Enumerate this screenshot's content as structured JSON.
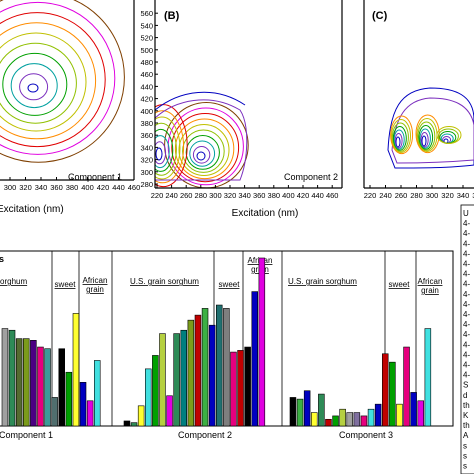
{
  "chart_data": [
    {
      "type": "contour",
      "panel": "(A)",
      "component_label": "Component 1",
      "xlabel": "Excitation (nm)",
      "ylabel": "",
      "x_ticks_visible": [
        "300",
        "320",
        "340",
        "360",
        "380",
        "400",
        "420",
        "440",
        "460"
      ],
      "y_ticks_visible": [],
      "xlim": [
        278,
        466
      ],
      "ylim": [
        270,
        570
      ],
      "peak": {
        "x": 336,
        "y": 432
      }
    },
    {
      "type": "contour",
      "panel": "(B)",
      "component_label": "Component 2",
      "xlabel": "Excitation (nm)",
      "ylabel": "",
      "x_ticks": [
        "220",
        "240",
        "260",
        "280",
        "300",
        "320",
        "340",
        "360",
        "380",
        "400",
        "420",
        "440",
        "460"
      ],
      "y_ticks": [
        "280",
        "300",
        "320",
        "340",
        "360",
        "380",
        "400",
        "420",
        "440",
        "460",
        "480",
        "500",
        "520",
        "540",
        "560"
      ],
      "xlim": [
        220,
        460
      ],
      "ylim": [
        280,
        560
      ],
      "peaks": [
        {
          "x": 282,
          "y": 330
        },
        {
          "x": 225,
          "y": 335
        }
      ]
    },
    {
      "type": "contour",
      "panel": "(C)",
      "component_label": "",
      "xlabel": "",
      "ylabel": "",
      "x_ticks": [
        "220",
        "240",
        "260",
        "280",
        "300",
        "320",
        "340",
        "360",
        "380",
        "400",
        "420",
        "440",
        "460"
      ],
      "y_ticks": [],
      "xlim": [
        220,
        460
      ],
      "ylim": [
        280,
        560
      ],
      "peaks": [
        {
          "x": 262,
          "y": 350
        },
        {
          "x": 282,
          "y": 350
        },
        {
          "x": 320,
          "y": 350
        }
      ]
    },
    {
      "type": "bar",
      "title_fragment": "s",
      "group_labels": [
        "Component 1",
        "Component 2",
        "Component 3"
      ],
      "section_labels": {
        "component1": [
          "sorghum",
          "sweet",
          "African grain"
        ],
        "component2": [
          "U.S. grain sorghum",
          "sweet",
          "African grain"
        ],
        "component3": [
          "U.S. grain sorghum",
          "sweet",
          "African grain"
        ]
      },
      "series": [
        {
          "group": "Component 1",
          "values": [
            0.58,
            0.57,
            0.52,
            0.52,
            0.51,
            0.47,
            0.46,
            0.17,
            0.46,
            0.32,
            0.67,
            0.26,
            0.15,
            0.39
          ],
          "colors": [
            "#a0a0a0",
            "#2e8b57",
            "#556b2f",
            "#7b9c1a",
            "#4b0082",
            "#e6007e",
            "#3c9c98",
            "#506e6e",
            "#000000",
            "#00a000",
            "#ffff30",
            "#0000c0",
            "#e000e0",
            "#40e0e0"
          ]
        },
        {
          "group": "Component 2",
          "values": [
            0.03,
            0.02,
            0.12,
            0.34,
            0.42,
            0.55,
            0.18,
            0.55,
            0.57,
            0.63,
            0.66,
            0.7,
            0.6,
            0.72,
            0.7,
            0.44,
            0.45,
            0.47,
            0.8,
            1.0
          ],
          "colors": [
            "#000000",
            "#2e8b57",
            "#ffff30",
            "#40e0e0",
            "#00a000",
            "#b5d040",
            "#e000e0",
            "#2e8b57",
            "#007f7f",
            "#7b9c1a",
            "#c00000",
            "#3cb043",
            "#0000c0",
            "#207070",
            "#7f7f7f",
            "#e6007e",
            "#c00000",
            "#000000",
            "#0000c0",
            "#e000e0"
          ]
        },
        {
          "group": "Component 3",
          "values": [
            0.17,
            0.16,
            0.21,
            0.08,
            0.19,
            0.04,
            0.06,
            0.1,
            0.08,
            0.08,
            0.06,
            0.1,
            0.13,
            0.43,
            0.38,
            0.13,
            0.47,
            0.2,
            0.15,
            0.58
          ],
          "colors": [
            "#000000",
            "#3cb043",
            "#0000c0",
            "#ffff30",
            "#2e8b57",
            "#c00000",
            "#00a000",
            "#b5d040",
            "#a0a0a0",
            "#7f6f9f",
            "#e6007e",
            "#40e0e0",
            "#0000c0",
            "#c00000",
            "#00a000",
            "#ffff30",
            "#e6007e",
            "#0000c0",
            "#e000e0",
            "#40e0e0"
          ]
        }
      ],
      "ylim": [
        0,
        1
      ]
    }
  ],
  "legend": {
    "entries": [
      {
        "text": "U",
        "color": "#000000"
      },
      {
        "text": "4-",
        "color": "#000000"
      },
      {
        "text": "4-",
        "color": "#c00000"
      },
      {
        "text": "4-",
        "color": "#00a000"
      },
      {
        "text": "4-",
        "color": "#000000"
      },
      {
        "text": "4-",
        "color": "#2e8b57"
      },
      {
        "text": "4-",
        "color": "#0000c0"
      },
      {
        "text": "4-",
        "color": "#40e0e0"
      },
      {
        "text": "4-",
        "color": "#e000e0"
      },
      {
        "text": "4-",
        "color": "#b5d040"
      },
      {
        "text": "4-",
        "color": "#c0c030"
      },
      {
        "text": "4-",
        "color": "#7b9c1a"
      },
      {
        "text": "4-",
        "color": "#4b0082"
      },
      {
        "text": "4-",
        "color": "#c00000"
      },
      {
        "text": "4-",
        "color": "#3cb043"
      },
      {
        "text": "4-",
        "color": "#0000c0"
      },
      {
        "text": "4-",
        "color": "#207070"
      },
      {
        "text": "S",
        "color": "#7f7f7f"
      },
      {
        "text": "d",
        "color": "#9f9f9f"
      },
      {
        "text": "th",
        "color": "#000000"
      },
      {
        "text": "K",
        "color": "#c00000"
      },
      {
        "text": "th",
        "color": "#00a000"
      },
      {
        "text": "A",
        "color": "#000000"
      },
      {
        "text": "s",
        "color": "#000000"
      },
      {
        "text": "s",
        "color": "#e000e0"
      },
      {
        "text": "s",
        "color": "#40e0e0"
      }
    ]
  }
}
